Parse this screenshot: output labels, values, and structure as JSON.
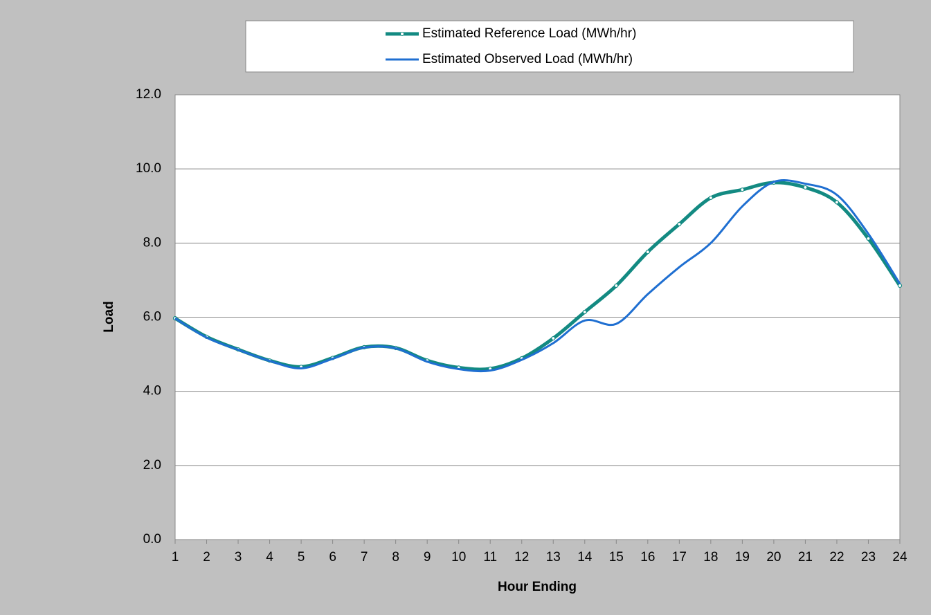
{
  "chart_data": {
    "type": "line",
    "x_label": "Hour Ending",
    "y_label": "Load",
    "x": [
      1,
      2,
      3,
      4,
      5,
      6,
      7,
      8,
      9,
      10,
      11,
      12,
      13,
      14,
      15,
      16,
      17,
      18,
      19,
      20,
      21,
      22,
      23,
      24
    ],
    "xlim": [
      1,
      24
    ],
    "xticks": [
      1,
      2,
      3,
      4,
      5,
      6,
      7,
      8,
      9,
      10,
      11,
      12,
      13,
      14,
      15,
      16,
      17,
      18,
      19,
      20,
      21,
      22,
      23,
      24
    ],
    "ylim": [
      0,
      12
    ],
    "yticks": [
      {
        "value": 0,
        "label": "0.0"
      },
      {
        "value": 2,
        "label": "2.0"
      },
      {
        "value": 4,
        "label": "4.0"
      },
      {
        "value": 6,
        "label": "6.0"
      },
      {
        "value": 8,
        "label": "8.0"
      },
      {
        "value": 10,
        "label": "10.0"
      },
      {
        "value": 12,
        "label": "12.0"
      }
    ],
    "grid": true,
    "legend": "top",
    "series": [
      {
        "name": "Estimated Reference Load (MWh/hr)",
        "color": "#138a82",
        "markers": true,
        "values": [
          5.97,
          5.47,
          5.13,
          4.83,
          4.66,
          4.9,
          5.19,
          5.17,
          4.83,
          4.64,
          4.61,
          4.89,
          5.43,
          6.14,
          6.85,
          7.76,
          8.51,
          9.22,
          9.44,
          9.63,
          9.5,
          9.1,
          8.12,
          6.85
        ]
      },
      {
        "name": "Estimated Observed Load (MWh/hr)",
        "color": "#1f6fd1",
        "markers": false,
        "values": [
          5.97,
          5.45,
          5.12,
          4.82,
          4.62,
          4.88,
          5.18,
          5.16,
          4.8,
          4.6,
          4.56,
          4.85,
          5.3,
          5.91,
          5.82,
          6.62,
          7.35,
          8.0,
          8.99,
          9.65,
          9.6,
          9.3,
          8.25,
          6.9
        ]
      }
    ]
  }
}
